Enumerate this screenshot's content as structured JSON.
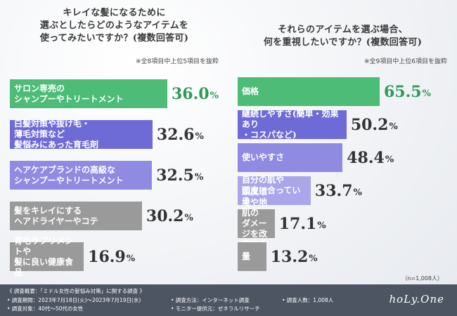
{
  "colors": {
    "green": "#4cbc77",
    "purple1": "#6e6ad6",
    "purple2": "#8f8be3",
    "purple3": "#a9a6ea",
    "gray": "#9a9a9a",
    "accent_text": "#2f9a5a"
  },
  "chart_data": [
    {
      "type": "bar",
      "title": "キレイな髪になるために\n選ぶとしたらどのようなアイテムを\n使ってみたいですか？(複数回答可)",
      "note": "※全8項目中上位5項目を抜粋",
      "categories": [
        "サロン専売の\nシャンプーやトリートメント",
        "白髪対策や抜け毛・\n薄毛対策など\n髪悩みにあった育毛剤",
        "ヘアケアブランドの高級な\nシャンプーやトリートメント",
        "髪をキレイにする\nヘアドライヤーやコテ",
        "育毛サプリメントや\n髪に良い健康食品"
      ],
      "values": [
        36.0,
        32.6,
        32.5,
        30.2,
        16.9
      ],
      "unit": "%",
      "xlim": [
        0,
        36
      ]
    },
    {
      "type": "bar",
      "title": "それらのアイテムを選ぶ場合、\n何を重視したいですか？(複数回答可)",
      "note": "※全9項目中上位6項目を抜粋",
      "categories": [
        "価格",
        "継続しやすさ(簡単・効果あり\n・コスパなど)",
        "使いやすさ",
        "自分の肌や\n頭皮に合っている",
        "頭皮環境や地肌の\nダメージを改善できる",
        "量"
      ],
      "values": [
        65.5,
        50.2,
        48.4,
        33.7,
        17.1,
        13.2
      ],
      "unit": "%",
      "xlim": [
        0,
        65.5
      ]
    }
  ],
  "sample_note": "（n=1,008人）",
  "footer": {
    "survey": "《 調査概要：「ミドル女性の髪悩み対策」に関する調査 》",
    "period": "• 調査期間：2023年7月18日(火)～2023年7月19日(水)",
    "target": "• 調査対象：40代～50代の女性",
    "method": "• 調査方法：インターネット調査",
    "provider": "• モニター提供元：ゼネラルリサーチ",
    "count": "• 調査人数：1,008人",
    "logo": "hoLy.One"
  }
}
